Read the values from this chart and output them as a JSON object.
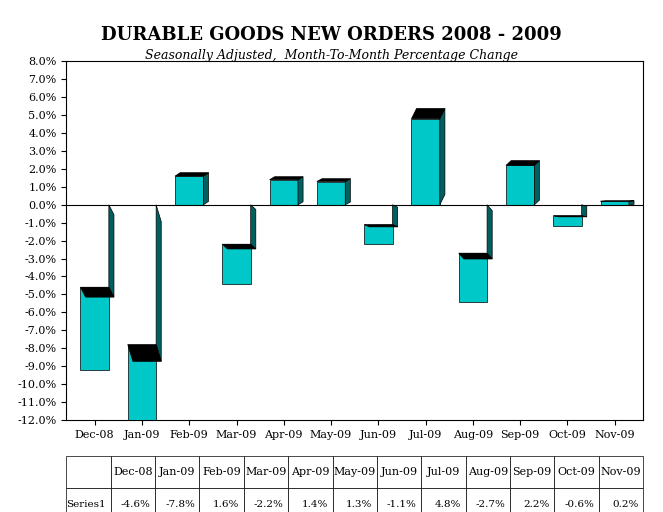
{
  "title": "DURABLE GOODS NEW ORDERS 2008 - 2009",
  "subtitle": "Seasonally Adjusted,  Month-To-Month Percentage Change",
  "categories": [
    "Dec-08",
    "Jan-09",
    "Feb-09",
    "Mar-09",
    "Apr-09",
    "May-09",
    "Jun-09",
    "Jul-09",
    "Aug-09",
    "Sep-09",
    "Oct-09",
    "Nov-09"
  ],
  "values": [
    -4.6,
    -7.8,
    1.6,
    -2.2,
    1.4,
    1.3,
    -1.1,
    4.8,
    -2.7,
    2.2,
    -0.6,
    0.2
  ],
  "series_label": "Series1",
  "bar_face_color": "#00C8C8",
  "bar_side_color": "#006060",
  "bar_top_color": "#000000",
  "background_color": "#FFFFFF",
  "ylim": [
    -12.0,
    8.0
  ],
  "yticks": [
    -12.0,
    -11.0,
    -10.0,
    -9.0,
    -8.0,
    -7.0,
    -6.0,
    -5.0,
    -4.0,
    -3.0,
    -2.0,
    -1.0,
    0.0,
    1.0,
    2.0,
    3.0,
    4.0,
    5.0,
    6.0,
    7.0,
    8.0
  ],
  "title_fontsize": 13,
  "subtitle_fontsize": 9,
  "tick_fontsize": 8,
  "table_fontsize": 7.5
}
